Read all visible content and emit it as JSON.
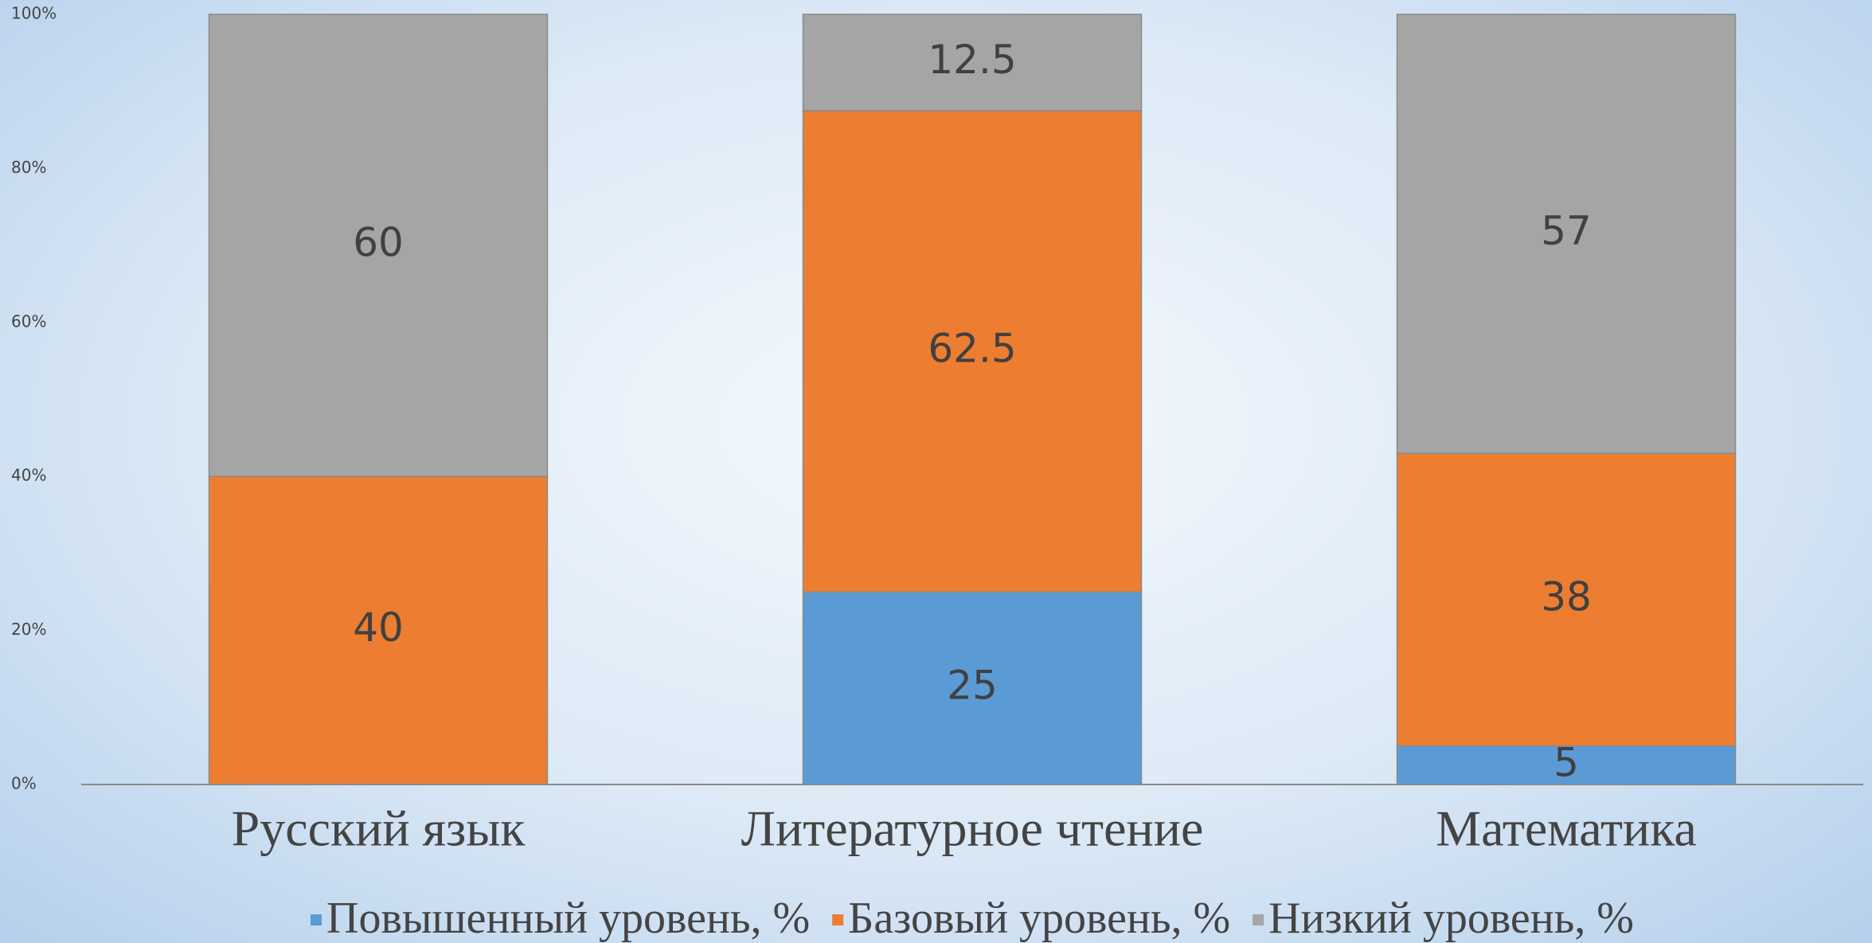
{
  "chart_data": {
    "type": "stacked_bar",
    "categories": [
      "Русский язык",
      "Литературное чтение",
      "Математика"
    ],
    "series": [
      {
        "name": "Повышенный уровень, %",
        "color": "#5b9bd5",
        "values": [
          0,
          25,
          5
        ]
      },
      {
        "name": "Базовый уровень, %",
        "color": "#ed7d31",
        "values": [
          40,
          62.5,
          38
        ]
      },
      {
        "name": "Низкий уровень, %",
        "color": "#a5a5a5",
        "values": [
          60,
          12.5,
          57
        ]
      }
    ],
    "ylim": [
      0,
      100
    ],
    "yticks": [
      {
        "value": 0,
        "label": "0%"
      },
      {
        "value": 20,
        "label": "20%"
      },
      {
        "value": 40,
        "label": "40%"
      },
      {
        "value": 60,
        "label": "60%"
      },
      {
        "value": 80,
        "label": "80%"
      },
      {
        "value": 100,
        "label": "100%"
      }
    ],
    "legend": "bottom"
  }
}
